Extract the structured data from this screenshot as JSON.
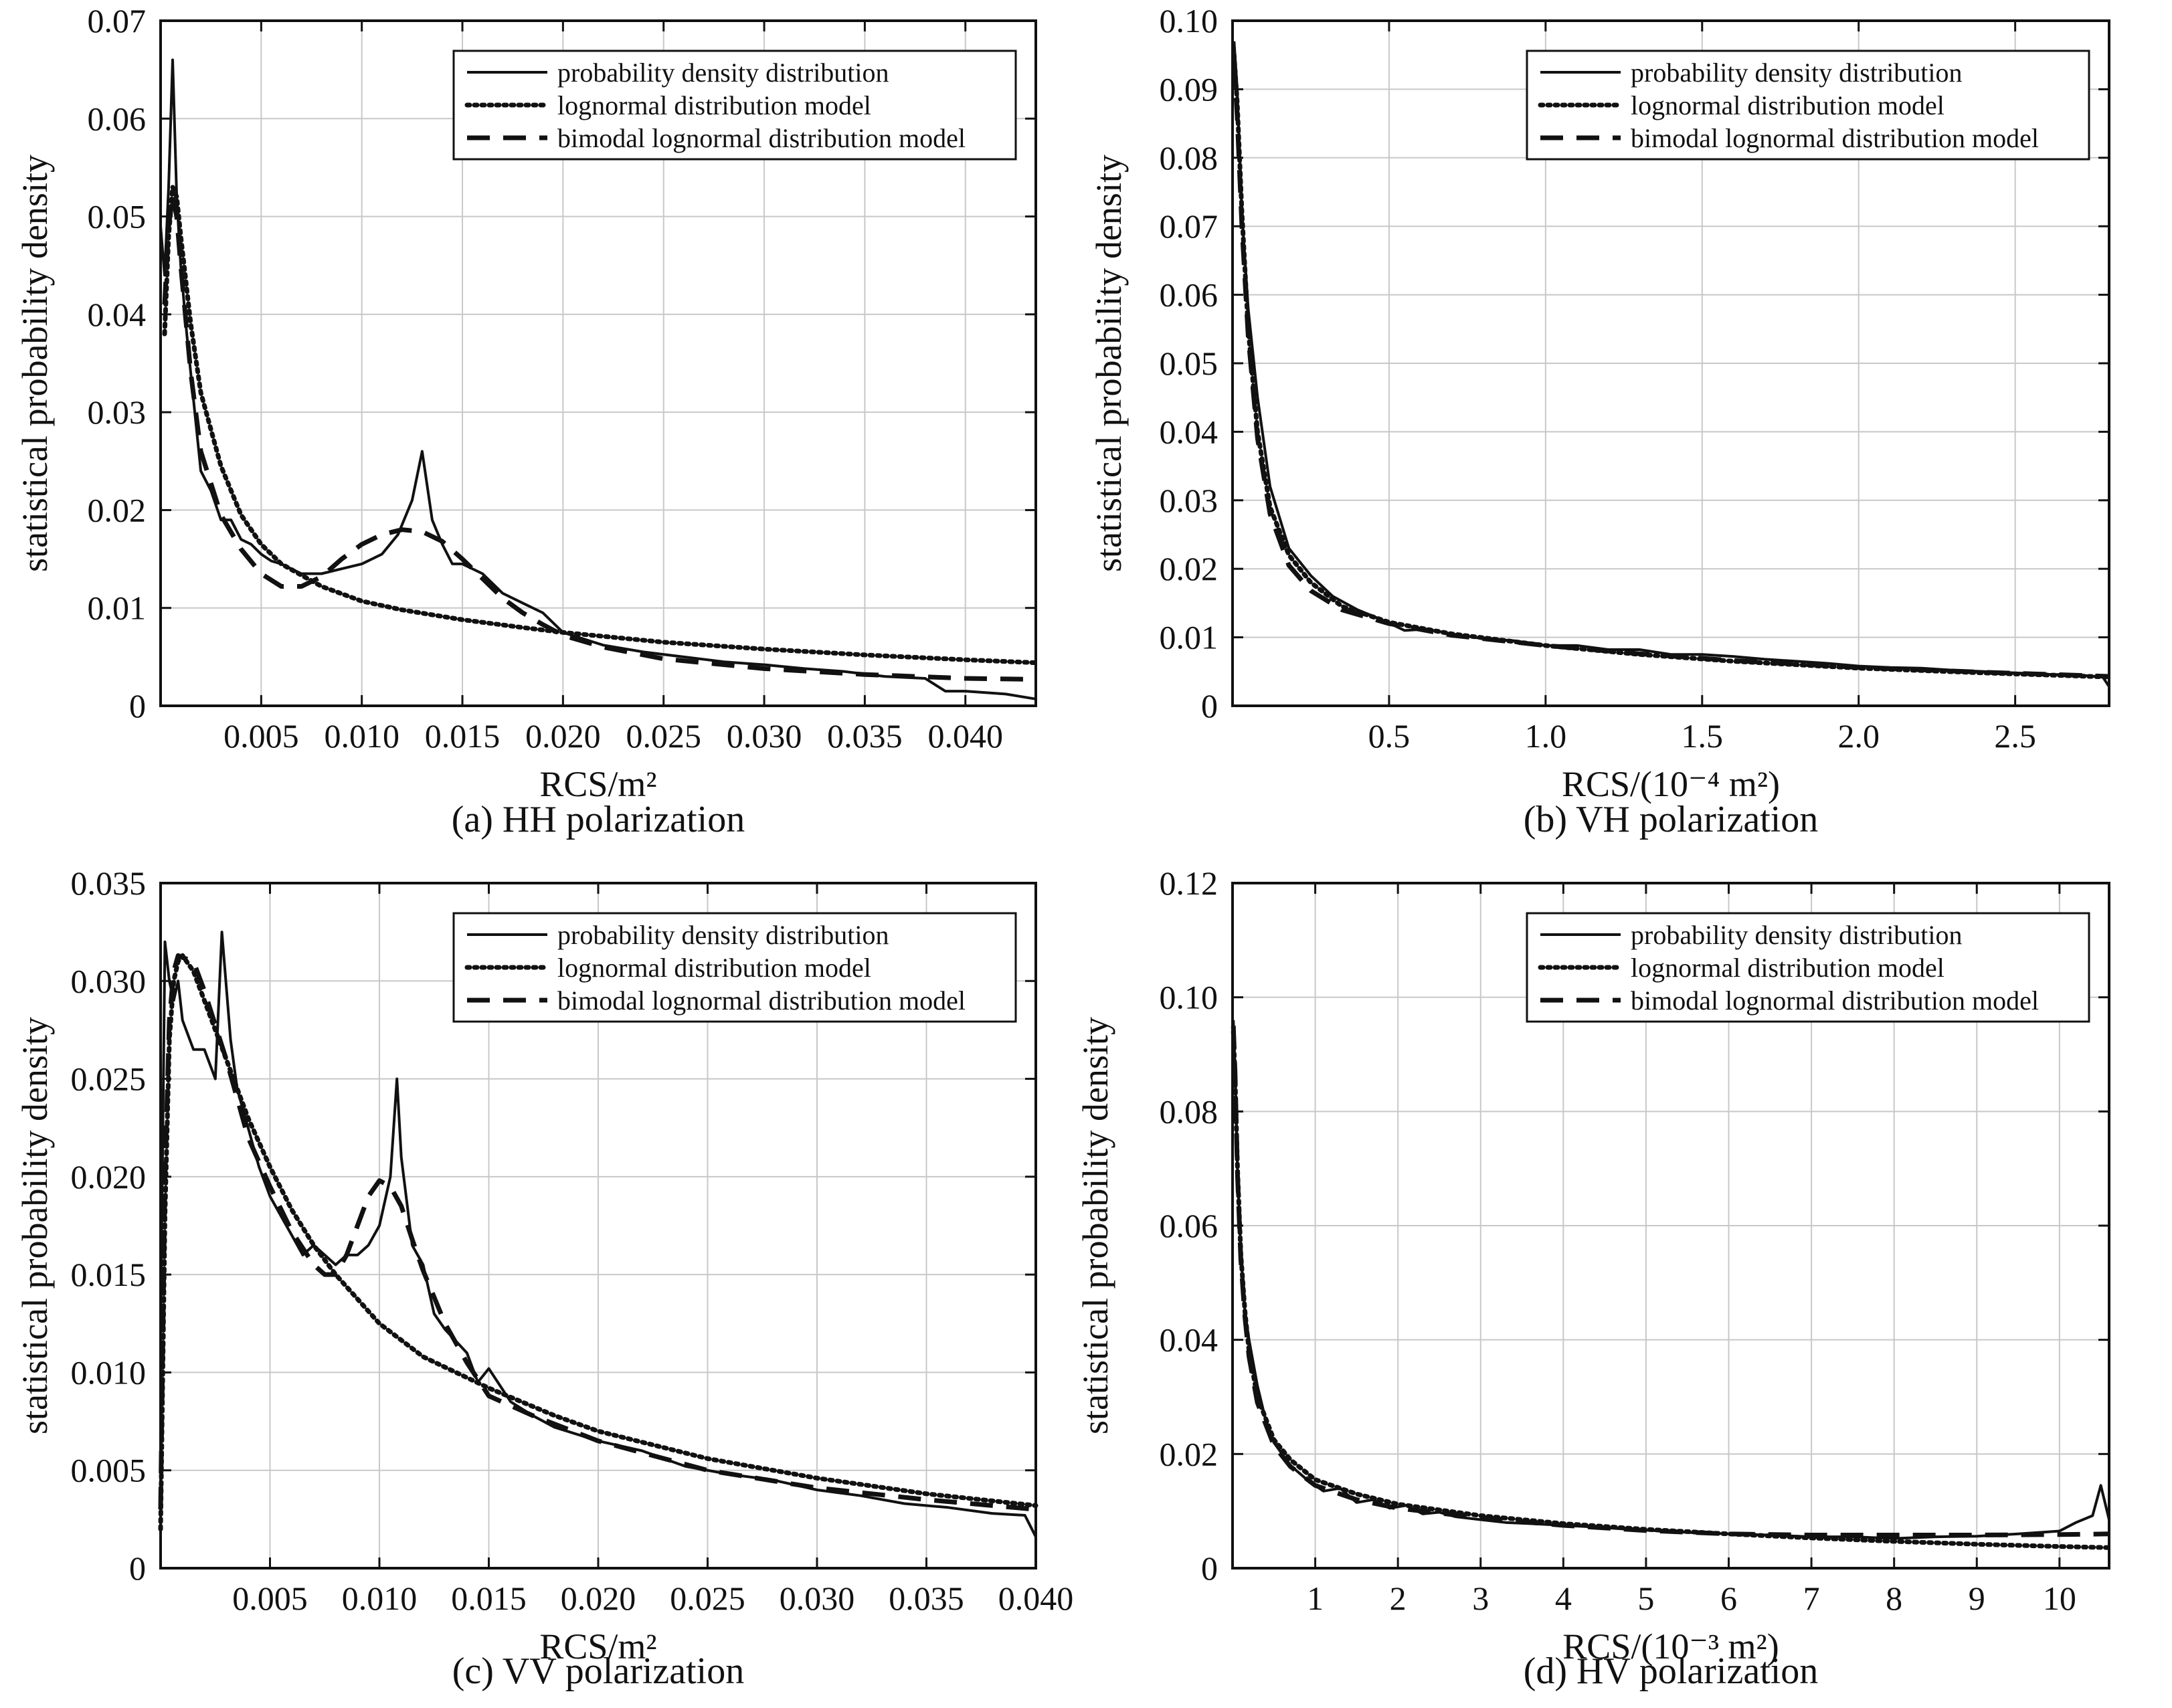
{
  "legend_entries": [
    "probability density distribution",
    "lognormal distribution model",
    "bimodal lognormal distribution model"
  ],
  "chart_data": [
    {
      "id": "a",
      "type": "line",
      "caption": "(a) HH polarization",
      "xlabel": "RCS/m²",
      "ylabel": "statistical probability density",
      "xlim": [
        0,
        0.0435
      ],
      "ylim": [
        0,
        0.07
      ],
      "xticks": [
        0.005,
        0.01,
        0.015,
        0.02,
        0.025,
        0.03,
        0.035,
        0.04
      ],
      "xtick_labels": [
        "0.005",
        "0.010",
        "0.015",
        "0.020",
        "0.025",
        "0.030",
        "0.035",
        "0.040"
      ],
      "yticks": [
        0,
        0.01,
        0.02,
        0.03,
        0.04,
        0.05,
        0.06,
        0.07
      ],
      "ytick_labels": [
        "0",
        "0.01",
        "0.02",
        "0.03",
        "0.04",
        "0.05",
        "0.06",
        "0.07"
      ],
      "grid": true,
      "legend_position": "top-right",
      "series": [
        {
          "name": "probability density distribution",
          "style": "solid",
          "x": [
            0,
            0.0002,
            0.0004,
            0.0006,
            0.0008,
            0.001,
            0.0013,
            0.0016,
            0.002,
            0.0025,
            0.003,
            0.0035,
            0.004,
            0.0045,
            0.005,
            0.0055,
            0.006,
            0.007,
            0.008,
            0.009,
            0.01,
            0.011,
            0.0118,
            0.0125,
            0.013,
            0.0135,
            0.014,
            0.0145,
            0.015,
            0.016,
            0.017,
            0.018,
            0.019,
            0.02,
            0.022,
            0.024,
            0.026,
            0.028,
            0.03,
            0.032,
            0.034,
            0.036,
            0.038,
            0.039,
            0.04,
            0.042,
            0.0435
          ],
          "y": [
            0.049,
            0.044,
            0.053,
            0.066,
            0.052,
            0.045,
            0.038,
            0.032,
            0.024,
            0.022,
            0.019,
            0.019,
            0.017,
            0.0165,
            0.0155,
            0.0148,
            0.0145,
            0.0135,
            0.0135,
            0.014,
            0.0145,
            0.0155,
            0.0175,
            0.021,
            0.026,
            0.019,
            0.0165,
            0.0145,
            0.0145,
            0.0135,
            0.0115,
            0.0105,
            0.0095,
            0.0075,
            0.0062,
            0.0055,
            0.005,
            0.0045,
            0.0042,
            0.0038,
            0.0035,
            0.003,
            0.0028,
            0.0015,
            0.0015,
            0.0012,
            0.0007
          ]
        },
        {
          "name": "lognormal distribution model",
          "style": "dotted",
          "x": [
            0.0002,
            0.0004,
            0.0006,
            0.0008,
            0.001,
            0.0015,
            0.002,
            0.003,
            0.004,
            0.005,
            0.006,
            0.008,
            0.01,
            0.012,
            0.015,
            0.018,
            0.02,
            0.025,
            0.03,
            0.035,
            0.04,
            0.0435
          ],
          "y": [
            0.038,
            0.048,
            0.053,
            0.052,
            0.048,
            0.039,
            0.032,
            0.0245,
            0.0195,
            0.0165,
            0.0145,
            0.0122,
            0.0107,
            0.0098,
            0.0088,
            0.008,
            0.0075,
            0.0065,
            0.0058,
            0.0052,
            0.0047,
            0.0044
          ]
        },
        {
          "name": "bimodal lognormal distribution model",
          "style": "dashed",
          "x": [
            0.0002,
            0.0004,
            0.0006,
            0.0008,
            0.001,
            0.0015,
            0.002,
            0.003,
            0.004,
            0.005,
            0.006,
            0.007,
            0.008,
            0.009,
            0.01,
            0.011,
            0.012,
            0.013,
            0.014,
            0.015,
            0.016,
            0.017,
            0.018,
            0.019,
            0.02,
            0.022,
            0.025,
            0.03,
            0.035,
            0.04,
            0.0435
          ],
          "y": [
            0.041,
            0.049,
            0.052,
            0.05,
            0.045,
            0.034,
            0.026,
            0.0195,
            0.016,
            0.0135,
            0.0122,
            0.0122,
            0.0132,
            0.015,
            0.0165,
            0.0175,
            0.018,
            0.0178,
            0.0168,
            0.015,
            0.013,
            0.011,
            0.0095,
            0.0083,
            0.0072,
            0.006,
            0.0048,
            0.0038,
            0.0032,
            0.0028,
            0.0027
          ]
        }
      ]
    },
    {
      "id": "b",
      "type": "line",
      "caption": "(b) VH polarization",
      "xlabel": "RCS/(10⁻⁴ m²)",
      "ylabel": "statistical probability density",
      "xlim": [
        0,
        2.8
      ],
      "ylim": [
        0,
        0.1
      ],
      "xticks": [
        0.5,
        1.0,
        1.5,
        2.0,
        2.5
      ],
      "xtick_labels": [
        "0.5",
        "1.0",
        "1.5",
        "2.0",
        "2.5"
      ],
      "yticks": [
        0,
        0.01,
        0.02,
        0.03,
        0.04,
        0.05,
        0.06,
        0.07,
        0.08,
        0.09,
        0.1
      ],
      "ytick_labels": [
        "0",
        "0.01",
        "0.02",
        "0.03",
        "0.04",
        "0.05",
        "0.06",
        "0.07",
        "0.08",
        "0.09",
        "0.10"
      ],
      "grid": true,
      "legend_position": "top-right",
      "series": [
        {
          "name": "probability density distribution",
          "style": "solid",
          "x": [
            0.005,
            0.015,
            0.03,
            0.05,
            0.08,
            0.12,
            0.18,
            0.25,
            0.32,
            0.4,
            0.48,
            0.55,
            0.62,
            0.7,
            0.8,
            0.9,
            1.0,
            1.1,
            1.2,
            1.3,
            1.4,
            1.5,
            1.6,
            1.7,
            1.8,
            1.9,
            2.0,
            2.1,
            2.2,
            2.3,
            2.4,
            2.5,
            2.6,
            2.7,
            2.78,
            2.8
          ],
          "y": [
            0.097,
            0.09,
            0.072,
            0.058,
            0.045,
            0.032,
            0.023,
            0.019,
            0.016,
            0.014,
            0.0125,
            0.011,
            0.0112,
            0.0105,
            0.0098,
            0.0095,
            0.0088,
            0.0088,
            0.0082,
            0.0082,
            0.0075,
            0.0075,
            0.0072,
            0.0068,
            0.0065,
            0.0062,
            0.0058,
            0.0056,
            0.0055,
            0.0052,
            0.005,
            0.0048,
            0.0046,
            0.0045,
            0.0042,
            0.0028
          ]
        },
        {
          "name": "lognormal distribution model",
          "style": "dotted",
          "x": [
            0.005,
            0.015,
            0.03,
            0.05,
            0.08,
            0.12,
            0.18,
            0.25,
            0.35,
            0.5,
            0.7,
            1.0,
            1.3,
            1.6,
            2.0,
            2.4,
            2.8
          ],
          "y": [
            0.095,
            0.088,
            0.072,
            0.055,
            0.04,
            0.029,
            0.022,
            0.018,
            0.0145,
            0.0122,
            0.0105,
            0.0088,
            0.0075,
            0.0065,
            0.0055,
            0.0048,
            0.0042
          ]
        },
        {
          "name": "bimodal lognormal distribution model",
          "style": "dashed",
          "x": [
            0.005,
            0.015,
            0.03,
            0.05,
            0.08,
            0.12,
            0.18,
            0.25,
            0.35,
            0.5,
            0.7,
            1.0,
            1.3,
            1.6,
            2.0,
            2.4,
            2.8
          ],
          "y": [
            0.094,
            0.086,
            0.07,
            0.054,
            0.039,
            0.028,
            0.0205,
            0.0168,
            0.014,
            0.012,
            0.0103,
            0.0088,
            0.0076,
            0.0066,
            0.0056,
            0.0049,
            0.0043
          ]
        }
      ]
    },
    {
      "id": "c",
      "type": "line",
      "caption": "(c) VV polarization",
      "xlabel": "RCS/m²",
      "ylabel": "statistical probability density",
      "xlim": [
        0,
        0.04
      ],
      "ylim": [
        0,
        0.035
      ],
      "xticks": [
        0.005,
        0.01,
        0.015,
        0.02,
        0.025,
        0.03,
        0.035,
        0.04
      ],
      "xtick_labels": [
        "0.005",
        "0.010",
        "0.015",
        "0.020",
        "0.025",
        "0.030",
        "0.035",
        "0.040"
      ],
      "yticks": [
        0,
        0.005,
        0.01,
        0.015,
        0.02,
        0.025,
        0.03,
        0.035
      ],
      "ytick_labels": [
        "0",
        "0.005",
        "0.010",
        "0.015",
        "0.020",
        "0.025",
        "0.030",
        "0.035"
      ],
      "grid": true,
      "legend_position": "top-right",
      "series": [
        {
          "name": "probability density distribution",
          "style": "solid",
          "x": [
            0,
            0.0002,
            0.0004,
            0.0006,
            0.0008,
            0.001,
            0.0015,
            0.002,
            0.0025,
            0.0028,
            0.0032,
            0.0035,
            0.004,
            0.0045,
            0.005,
            0.0055,
            0.006,
            0.0065,
            0.007,
            0.0075,
            0.008,
            0.0085,
            0.009,
            0.0095,
            0.01,
            0.0105,
            0.0108,
            0.011,
            0.0115,
            0.012,
            0.0125,
            0.013,
            0.014,
            0.0145,
            0.015,
            0.016,
            0.017,
            0.018,
            0.02,
            0.022,
            0.024,
            0.026,
            0.028,
            0.03,
            0.032,
            0.034,
            0.036,
            0.038,
            0.0395,
            0.04
          ],
          "y": [
            0.012,
            0.032,
            0.03,
            0.029,
            0.03,
            0.028,
            0.0265,
            0.0265,
            0.025,
            0.0325,
            0.027,
            0.0245,
            0.0225,
            0.0205,
            0.019,
            0.018,
            0.017,
            0.016,
            0.0165,
            0.016,
            0.0155,
            0.016,
            0.016,
            0.0165,
            0.0175,
            0.02,
            0.025,
            0.021,
            0.0165,
            0.0155,
            0.013,
            0.0122,
            0.011,
            0.0095,
            0.0102,
            0.0085,
            0.0078,
            0.0072,
            0.0065,
            0.006,
            0.0052,
            0.0048,
            0.0045,
            0.004,
            0.0037,
            0.0033,
            0.0031,
            0.0028,
            0.0027,
            0.0016
          ]
        },
        {
          "name": "lognormal distribution model",
          "style": "dotted",
          "x": [
            0,
            0.0002,
            0.0004,
            0.0006,
            0.0008,
            0.001,
            0.0015,
            0.002,
            0.003,
            0.004,
            0.005,
            0.006,
            0.007,
            0.008,
            0.01,
            0.012,
            0.015,
            0.018,
            0.02,
            0.025,
            0.03,
            0.035,
            0.04
          ],
          "y": [
            0.002,
            0.018,
            0.027,
            0.03,
            0.031,
            0.0313,
            0.0305,
            0.029,
            0.026,
            0.023,
            0.0205,
            0.0183,
            0.0165,
            0.015,
            0.0125,
            0.0108,
            0.0092,
            0.0078,
            0.007,
            0.0056,
            0.0046,
            0.0038,
            0.0032
          ]
        },
        {
          "name": "bimodal lognormal distribution model",
          "style": "dashed",
          "x": [
            0,
            0.0002,
            0.0004,
            0.0006,
            0.0008,
            0.001,
            0.0015,
            0.002,
            0.003,
            0.004,
            0.005,
            0.006,
            0.007,
            0.0075,
            0.008,
            0.0085,
            0.009,
            0.0095,
            0.01,
            0.0105,
            0.011,
            0.0115,
            0.012,
            0.013,
            0.014,
            0.015,
            0.017,
            0.02,
            0.025,
            0.03,
            0.035,
            0.04
          ],
          "y": [
            0.003,
            0.02,
            0.028,
            0.0305,
            0.0313,
            0.0312,
            0.031,
            0.0295,
            0.026,
            0.022,
            0.0195,
            0.0172,
            0.0155,
            0.015,
            0.015,
            0.016,
            0.0175,
            0.019,
            0.0198,
            0.0195,
            0.0185,
            0.0168,
            0.0152,
            0.0125,
            0.0105,
            0.0088,
            0.0078,
            0.0065,
            0.005,
            0.0041,
            0.0035,
            0.003
          ]
        }
      ]
    },
    {
      "id": "d",
      "type": "line",
      "caption": "(d) HV polarization",
      "xlabel": "RCS/(10⁻³ m²)",
      "ylabel": "statistical probability density",
      "xlim": [
        0,
        10.6
      ],
      "ylim": [
        0,
        0.12
      ],
      "xticks": [
        1,
        2,
        3,
        4,
        5,
        6,
        7,
        8,
        9,
        10
      ],
      "xtick_labels": [
        "1",
        "2",
        "3",
        "4",
        "5",
        "6",
        "7",
        "8",
        "9",
        "10"
      ],
      "yticks": [
        0,
        0.02,
        0.04,
        0.06,
        0.08,
        0.1,
        0.12
      ],
      "ytick_labels": [
        "0",
        "0.02",
        "0.04",
        "0.06",
        "0.08",
        "0.10",
        "0.12"
      ],
      "grid": true,
      "legend_position": "top-right",
      "series": [
        {
          "name": "probability density distribution",
          "style": "solid",
          "x": [
            0.01,
            0.03,
            0.06,
            0.1,
            0.15,
            0.2,
            0.3,
            0.4,
            0.5,
            0.7,
            0.9,
            1.1,
            1.3,
            1.5,
            1.7,
            1.9,
            2.1,
            2.3,
            2.5,
            2.7,
            3.0,
            3.3,
            3.6,
            4.0,
            4.4,
            4.8,
            5.2,
            5.6,
            6.0,
            6.5,
            7.0,
            7.5,
            8.0,
            8.5,
            9.0,
            9.5,
            10.0,
            10.2,
            10.4,
            10.5,
            10.6
          ],
          "y": [
            0.096,
            0.088,
            0.07,
            0.055,
            0.045,
            0.04,
            0.032,
            0.026,
            0.022,
            0.018,
            0.0155,
            0.0135,
            0.014,
            0.0115,
            0.012,
            0.0105,
            0.011,
            0.0095,
            0.0098,
            0.009,
            0.0085,
            0.008,
            0.0078,
            0.0075,
            0.0072,
            0.0068,
            0.0065,
            0.0062,
            0.006,
            0.0058,
            0.0055,
            0.0055,
            0.0052,
            0.0055,
            0.0056,
            0.006,
            0.0065,
            0.008,
            0.0092,
            0.0145,
            0.0085
          ]
        },
        {
          "name": "lognormal distribution model",
          "style": "dotted",
          "x": [
            0.01,
            0.03,
            0.06,
            0.1,
            0.15,
            0.2,
            0.3,
            0.5,
            0.7,
            1.0,
            1.5,
            2.0,
            3.0,
            4.0,
            5.0,
            6.0,
            7.0,
            8.0,
            9.0,
            10.0,
            10.6
          ],
          "y": [
            0.094,
            0.086,
            0.07,
            0.055,
            0.045,
            0.038,
            0.03,
            0.0225,
            0.019,
            0.0155,
            0.013,
            0.0112,
            0.0092,
            0.0078,
            0.0068,
            0.006,
            0.0053,
            0.0047,
            0.0042,
            0.0038,
            0.0036
          ]
        },
        {
          "name": "bimodal lognormal distribution model",
          "style": "dashed",
          "x": [
            0.01,
            0.03,
            0.06,
            0.1,
            0.15,
            0.2,
            0.3,
            0.5,
            0.7,
            1.0,
            1.5,
            2.0,
            3.0,
            4.0,
            5.0,
            6.0,
            7.0,
            8.0,
            9.0,
            10.0,
            10.6
          ],
          "y": [
            0.095,
            0.087,
            0.069,
            0.054,
            0.044,
            0.037,
            0.029,
            0.0215,
            0.0178,
            0.0145,
            0.012,
            0.0105,
            0.0088,
            0.0075,
            0.0066,
            0.006,
            0.0058,
            0.0058,
            0.0058,
            0.0059,
            0.006
          ]
        }
      ]
    }
  ]
}
